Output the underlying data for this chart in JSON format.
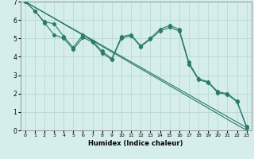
{
  "title": "",
  "xlabel": "Humidex (Indice chaleur)",
  "xlim": [
    -0.5,
    23.5
  ],
  "ylim": [
    0,
    7
  ],
  "xticks": [
    0,
    1,
    2,
    3,
    4,
    5,
    6,
    7,
    8,
    9,
    10,
    11,
    12,
    13,
    14,
    15,
    16,
    17,
    18,
    19,
    20,
    21,
    22,
    23
  ],
  "yticks": [
    0,
    1,
    2,
    3,
    4,
    5,
    6,
    7
  ],
  "bg_color": "#d6eeeb",
  "grid_color": "#b8d8d4",
  "line_color": "#2a7a6a",
  "line1_x": [
    0,
    1,
    2,
    3,
    4,
    5,
    6,
    7,
    8,
    9,
    10,
    11,
    12,
    13,
    14,
    15,
    16,
    17,
    18,
    19,
    20,
    21,
    22,
    23
  ],
  "line1_y": [
    7.0,
    6.5,
    5.9,
    5.8,
    5.1,
    4.5,
    5.2,
    4.85,
    4.3,
    3.9,
    5.1,
    5.2,
    4.6,
    5.0,
    5.5,
    5.7,
    5.5,
    3.7,
    2.8,
    2.65,
    2.1,
    2.0,
    1.6,
    0.2
  ],
  "line2_x": [
    0,
    1,
    2,
    3,
    4,
    5,
    6,
    7,
    8,
    9,
    10,
    11,
    12,
    13,
    14,
    15,
    16,
    17,
    18,
    19,
    20,
    21,
    22,
    23
  ],
  "line2_y": [
    7.0,
    6.5,
    5.85,
    5.2,
    5.0,
    4.4,
    5.05,
    4.8,
    4.2,
    3.85,
    5.0,
    5.15,
    4.55,
    4.95,
    5.4,
    5.6,
    5.4,
    3.6,
    2.75,
    2.6,
    2.05,
    1.95,
    1.55,
    0.15
  ],
  "line3_x": [
    0,
    23
  ],
  "line3_y": [
    7.0,
    0.15
  ],
  "line4_x": [
    0,
    1,
    2,
    3,
    4,
    5,
    6,
    7,
    8,
    9,
    10,
    11,
    12,
    13,
    14,
    15,
    16,
    17,
    18,
    19,
    20,
    21,
    22,
    23
  ],
  "line4_y": [
    7.0,
    6.69,
    6.39,
    6.09,
    5.78,
    5.48,
    5.18,
    4.87,
    4.57,
    4.26,
    3.96,
    3.65,
    3.35,
    3.04,
    2.74,
    2.43,
    2.13,
    1.82,
    1.52,
    1.21,
    0.91,
    0.6,
    0.3,
    0.0
  ]
}
